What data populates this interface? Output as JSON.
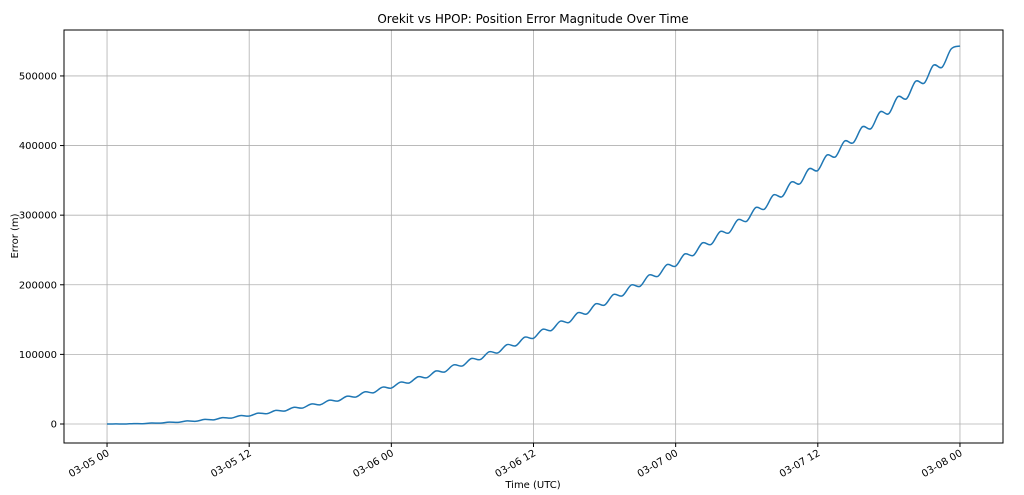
{
  "chart_data": {
    "type": "line",
    "title": "Orekit vs HPOP: Position Error Magnitude Over Time",
    "xlabel": "Time (UTC)",
    "ylabel": "Error (m)",
    "xlim": [
      "03-04 20:22",
      "03-08 03:38"
    ],
    "ylim": [
      -27300,
      566000
    ],
    "grid": true,
    "line_color": "#1f77b4",
    "x_ticks": [
      "03-05 00",
      "03-05 12",
      "03-06 00",
      "03-06 12",
      "03-07 00",
      "03-07 12",
      "03-08 00"
    ],
    "y_ticks": [
      0,
      100000,
      200000,
      300000,
      400000,
      500000
    ],
    "y_tick_labels": [
      "0",
      "100000",
      "200000",
      "300000",
      "400000",
      "500000"
    ],
    "series": [
      {
        "x": [
          "03-05 00:00",
          "03-05 00:45",
          "03-05 01:30",
          "03-05 02:15",
          "03-05 03:00",
          "03-05 03:45",
          "03-05 04:30",
          "03-05 05:15",
          "03-05 06:00",
          "03-05 06:45",
          "03-05 07:30",
          "03-05 08:15",
          "03-05 09:00",
          "03-05 09:45",
          "03-05 10:30",
          "03-05 11:15",
          "03-05 12:00",
          "03-05 12:45",
          "03-05 13:30",
          "03-05 14:15",
          "03-05 15:00",
          "03-05 15:45",
          "03-05 16:30",
          "03-05 17:15",
          "03-05 18:00",
          "03-05 18:45",
          "03-05 19:30",
          "03-05 20:15",
          "03-05 21:00",
          "03-05 21:45",
          "03-05 22:30",
          "03-05 23:15",
          "03-06 00:00",
          "03-06 00:45",
          "03-06 01:30",
          "03-06 02:15",
          "03-06 03:00",
          "03-06 03:45",
          "03-06 04:30",
          "03-06 05:15",
          "03-06 06:00",
          "03-06 06:45",
          "03-06 07:30",
          "03-06 08:15",
          "03-06 09:00",
          "03-06 09:45",
          "03-06 10:30",
          "03-06 11:15",
          "03-06 12:00",
          "03-06 12:45",
          "03-06 13:30",
          "03-06 14:15",
          "03-06 15:00",
          "03-06 15:45",
          "03-06 16:30",
          "03-06 17:15",
          "03-06 18:00",
          "03-06 18:45",
          "03-06 19:30",
          "03-06 20:15",
          "03-06 21:00",
          "03-06 21:45",
          "03-06 22:30",
          "03-06 23:15",
          "03-07 00:00",
          "03-07 00:45",
          "03-07 01:30",
          "03-07 02:15",
          "03-07 03:00",
          "03-07 03:45",
          "03-07 04:30",
          "03-07 05:15",
          "03-07 06:00",
          "03-07 06:45",
          "03-07 07:30",
          "03-07 08:15",
          "03-07 09:00",
          "03-07 09:45",
          "03-07 10:30",
          "03-07 11:15",
          "03-07 12:00",
          "03-07 12:45",
          "03-07 13:30",
          "03-07 14:15",
          "03-07 15:00",
          "03-07 15:45",
          "03-07 16:30",
          "03-07 17:15",
          "03-07 18:00",
          "03-07 18:45",
          "03-07 19:30",
          "03-07 20:15",
          "03-07 21:00",
          "03-07 21:45",
          "03-07 22:30",
          "03-07 23:15",
          "03-08 00:00"
        ],
        "y": [
          0,
          100,
          0,
          600,
          400,
          1500,
          1200,
          2700,
          2300,
          4400,
          3900,
          6600,
          6000,
          9100,
          8500,
          12100,
          11400,
          15600,
          14800,
          19500,
          18600,
          23900,
          22900,
          28700,
          27700,
          34100,
          33000,
          39900,
          38700,
          46100,
          44900,
          52900,
          51600,
          60100,
          58900,
          67900,
          66500,
          76100,
          74700,
          84800,
          83400,
          94100,
          92500,
          103700,
          102200,
          114000,
          112400,
          124700,
          123100,
          135900,
          134300,
          147600,
          145900,
          159900,
          158100,
          172600,
          170800,
          186000,
          184100,
          199700,
          197800,
          214000,
          212100,
          228800,
          226800,
          244100,
          242200,
          260100,
          258000,
          276400,
          274500,
          293500,
          291300,
          310900,
          308700,
          328900,
          326700,
          347400,
          345200,
          366500,
          364200,
          386100,
          383900,
          406300,
          404100,
          426800,
          424500,
          448200,
          445900,
          470100,
          467400,
          492300,
          489900,
          515300,
          512600,
          538600,
          543000
        ]
      }
    ]
  }
}
